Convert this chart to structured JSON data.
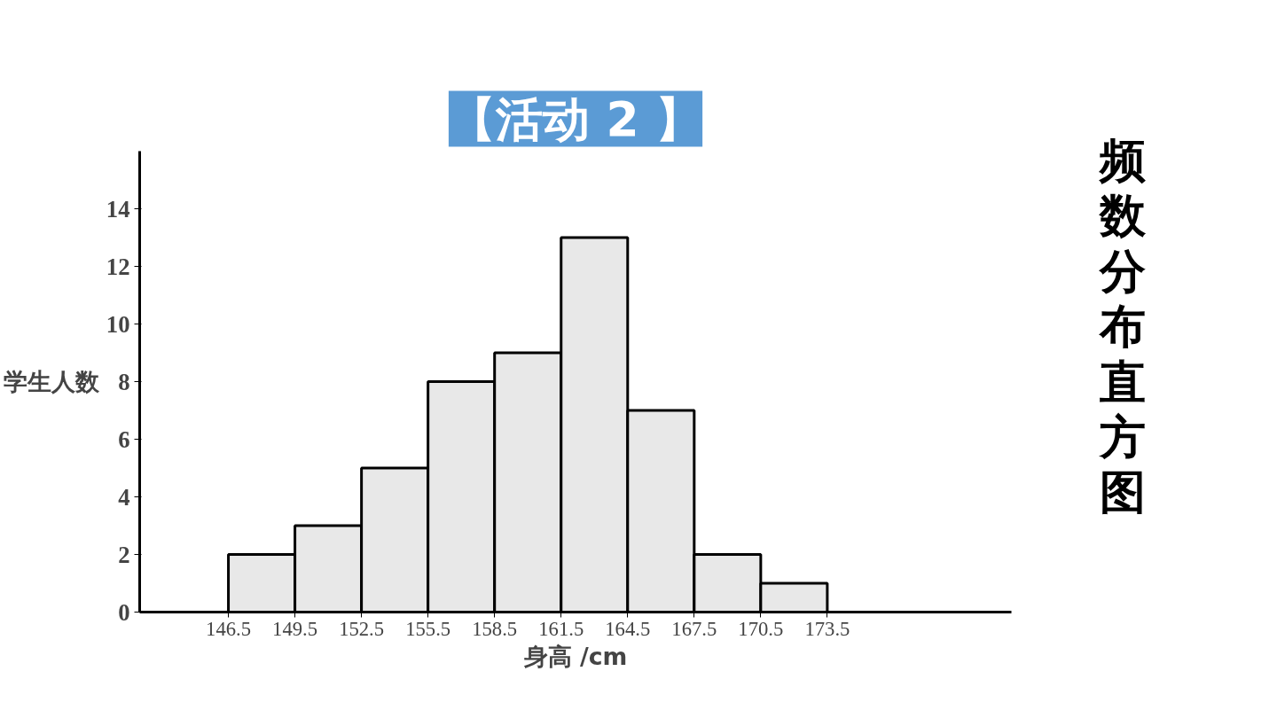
{
  "chart_data": {
    "type": "histogram",
    "title": "【活动 2 】",
    "xlabel": "身高 /cm",
    "ylabel": "学生人数",
    "annotations": [
      "频数分布直方图"
    ],
    "bins": [
      146.5,
      149.5,
      152.5,
      155.5,
      158.5,
      161.5,
      164.5,
      167.5,
      170.5,
      173.5
    ],
    "values": [
      2,
      3,
      5,
      8,
      9,
      13,
      7,
      2,
      1
    ],
    "color": "#e8e8e8",
    "xlim": [
      142.5,
      181.8
    ],
    "ylim": [
      0,
      16
    ],
    "xticks": [
      146.5,
      149.5,
      152.5,
      155.5,
      158.5,
      161.5,
      164.5,
      167.5,
      170.5,
      173.5
    ],
    "yticks": [
      0,
      2,
      4,
      6,
      8,
      10,
      12,
      14
    ],
    "grid": false
  }
}
